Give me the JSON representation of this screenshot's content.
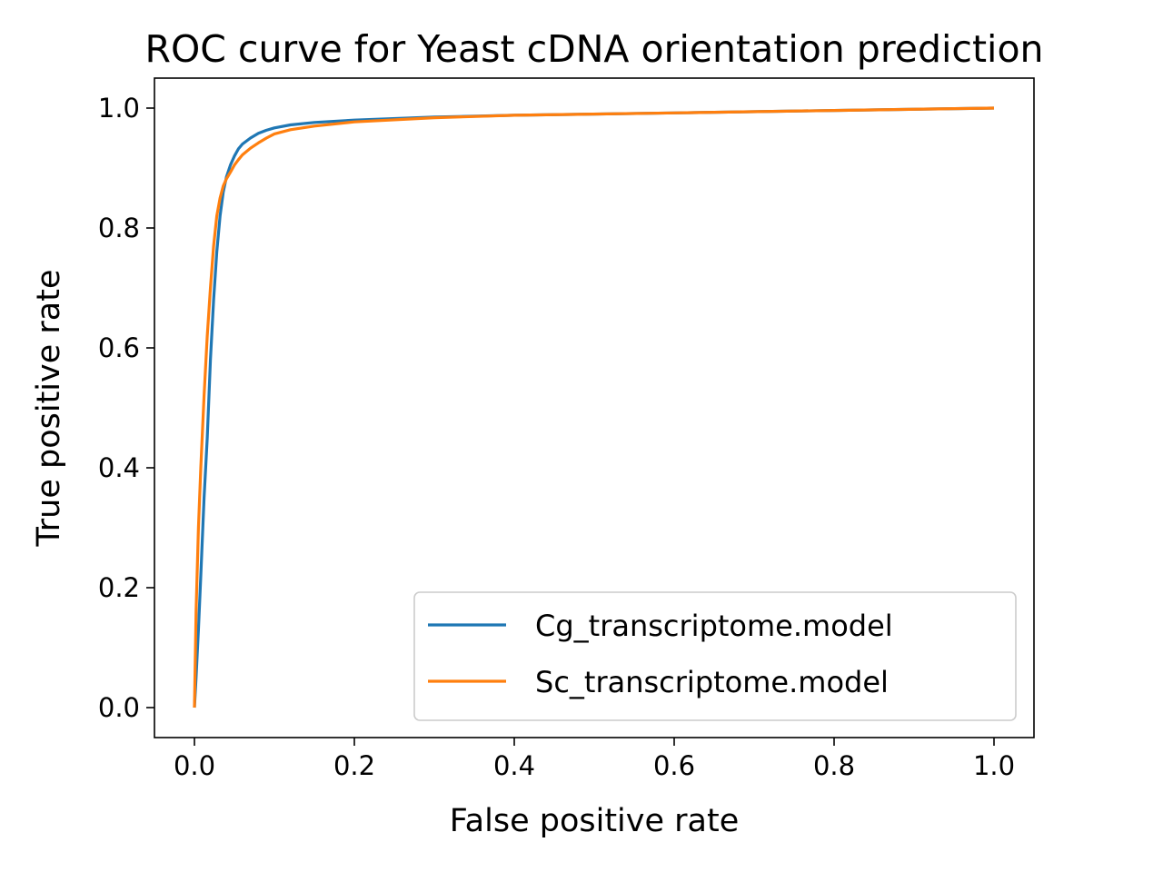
{
  "chart_data": {
    "type": "line",
    "title": "ROC curve for Yeast cDNA orientation prediction",
    "xlabel": "False positive rate",
    "ylabel": "True positive rate",
    "xlim": [
      -0.05,
      1.05
    ],
    "ylim": [
      -0.05,
      1.05
    ],
    "xticks": [
      "0.0",
      "0.2",
      "0.4",
      "0.6",
      "0.8",
      "1.0"
    ],
    "yticks": [
      "0.0",
      "0.2",
      "0.4",
      "0.6",
      "0.8",
      "1.0"
    ],
    "grid": false,
    "legend_position": "lower right",
    "series": [
      {
        "name": "Cg_transcriptome.model",
        "color": "#1f77b4",
        "x": [
          0.0,
          0.002,
          0.005,
          0.008,
          0.012,
          0.016,
          0.02,
          0.024,
          0.028,
          0.032,
          0.036,
          0.04,
          0.045,
          0.05,
          0.055,
          0.06,
          0.07,
          0.08,
          0.09,
          0.1,
          0.12,
          0.15,
          0.2,
          0.3,
          0.4,
          0.6,
          0.8,
          1.0
        ],
        "y": [
          0.0,
          0.05,
          0.13,
          0.22,
          0.35,
          0.45,
          0.58,
          0.68,
          0.76,
          0.82,
          0.86,
          0.885,
          0.905,
          0.92,
          0.932,
          0.94,
          0.95,
          0.958,
          0.963,
          0.967,
          0.972,
          0.976,
          0.98,
          0.985,
          0.988,
          0.992,
          0.996,
          1.0
        ]
      },
      {
        "name": "Sc_transcriptome.model",
        "color": "#ff7f0e",
        "x": [
          0.0,
          0.002,
          0.005,
          0.008,
          0.012,
          0.016,
          0.02,
          0.024,
          0.028,
          0.032,
          0.036,
          0.04,
          0.045,
          0.05,
          0.055,
          0.06,
          0.07,
          0.08,
          0.09,
          0.1,
          0.12,
          0.15,
          0.2,
          0.3,
          0.4,
          0.6,
          0.8,
          1.0
        ],
        "y": [
          0.0,
          0.16,
          0.3,
          0.4,
          0.52,
          0.62,
          0.7,
          0.77,
          0.82,
          0.85,
          0.87,
          0.882,
          0.893,
          0.905,
          0.914,
          0.922,
          0.933,
          0.942,
          0.95,
          0.957,
          0.964,
          0.97,
          0.977,
          0.984,
          0.988,
          0.992,
          0.996,
          1.0
        ]
      }
    ]
  }
}
